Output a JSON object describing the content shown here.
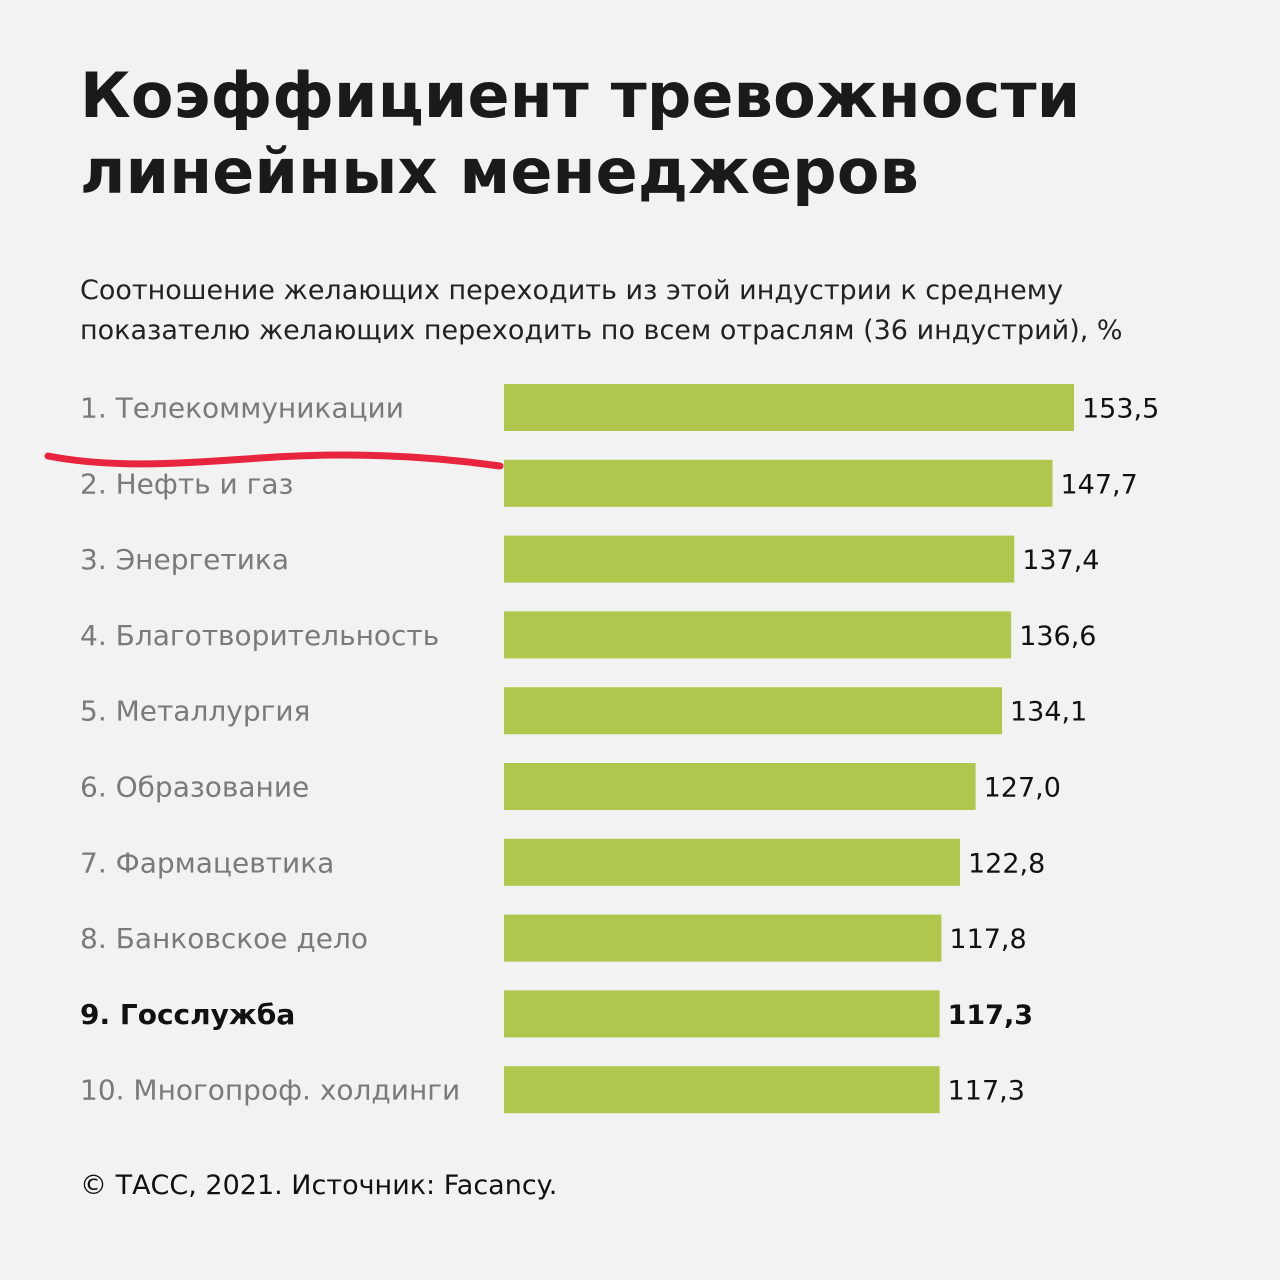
{
  "colors": {
    "background": "#f2f2f2",
    "bar": "#afc74c",
    "marker": "#e8253f"
  },
  "chart_data": {
    "type": "bar",
    "orientation": "horizontal",
    "title": "Коэффициент тревожности линейных менеджеров",
    "title_lines": [
      "Коэффициент тревожности",
      "линейных менеджеров"
    ],
    "subtitle_lines": [
      "Соотношение желающих переходить из этой индустрии к среднему",
      "показателю желающих переходить по всем отраслям (36 индустрий), %"
    ],
    "categories": [
      "1. Телекоммуникации",
      "2. Нефть и газ",
      "3. Энергетика",
      "4. Благотворительность",
      "5. Металлургия",
      "6. Образование",
      "7. Фармацевтика",
      "8. Банковское дело",
      "9. Госслужба",
      "10. Многопроф. холдинги"
    ],
    "values": [
      153.5,
      147.7,
      137.4,
      136.6,
      134.1,
      127.0,
      122.8,
      117.8,
      117.3,
      117.3
    ],
    "value_labels": [
      "153,5",
      "147,7",
      "137,4",
      "136,6",
      "134,1",
      "127,0",
      "122,8",
      "117,8",
      "117,3",
      "117,3"
    ],
    "highlighted_index": 8,
    "xlim": [
      0,
      153.5
    ],
    "grid": false,
    "legend": "none"
  },
  "source": "© ТАСС, 2021. Источник: Facancy."
}
